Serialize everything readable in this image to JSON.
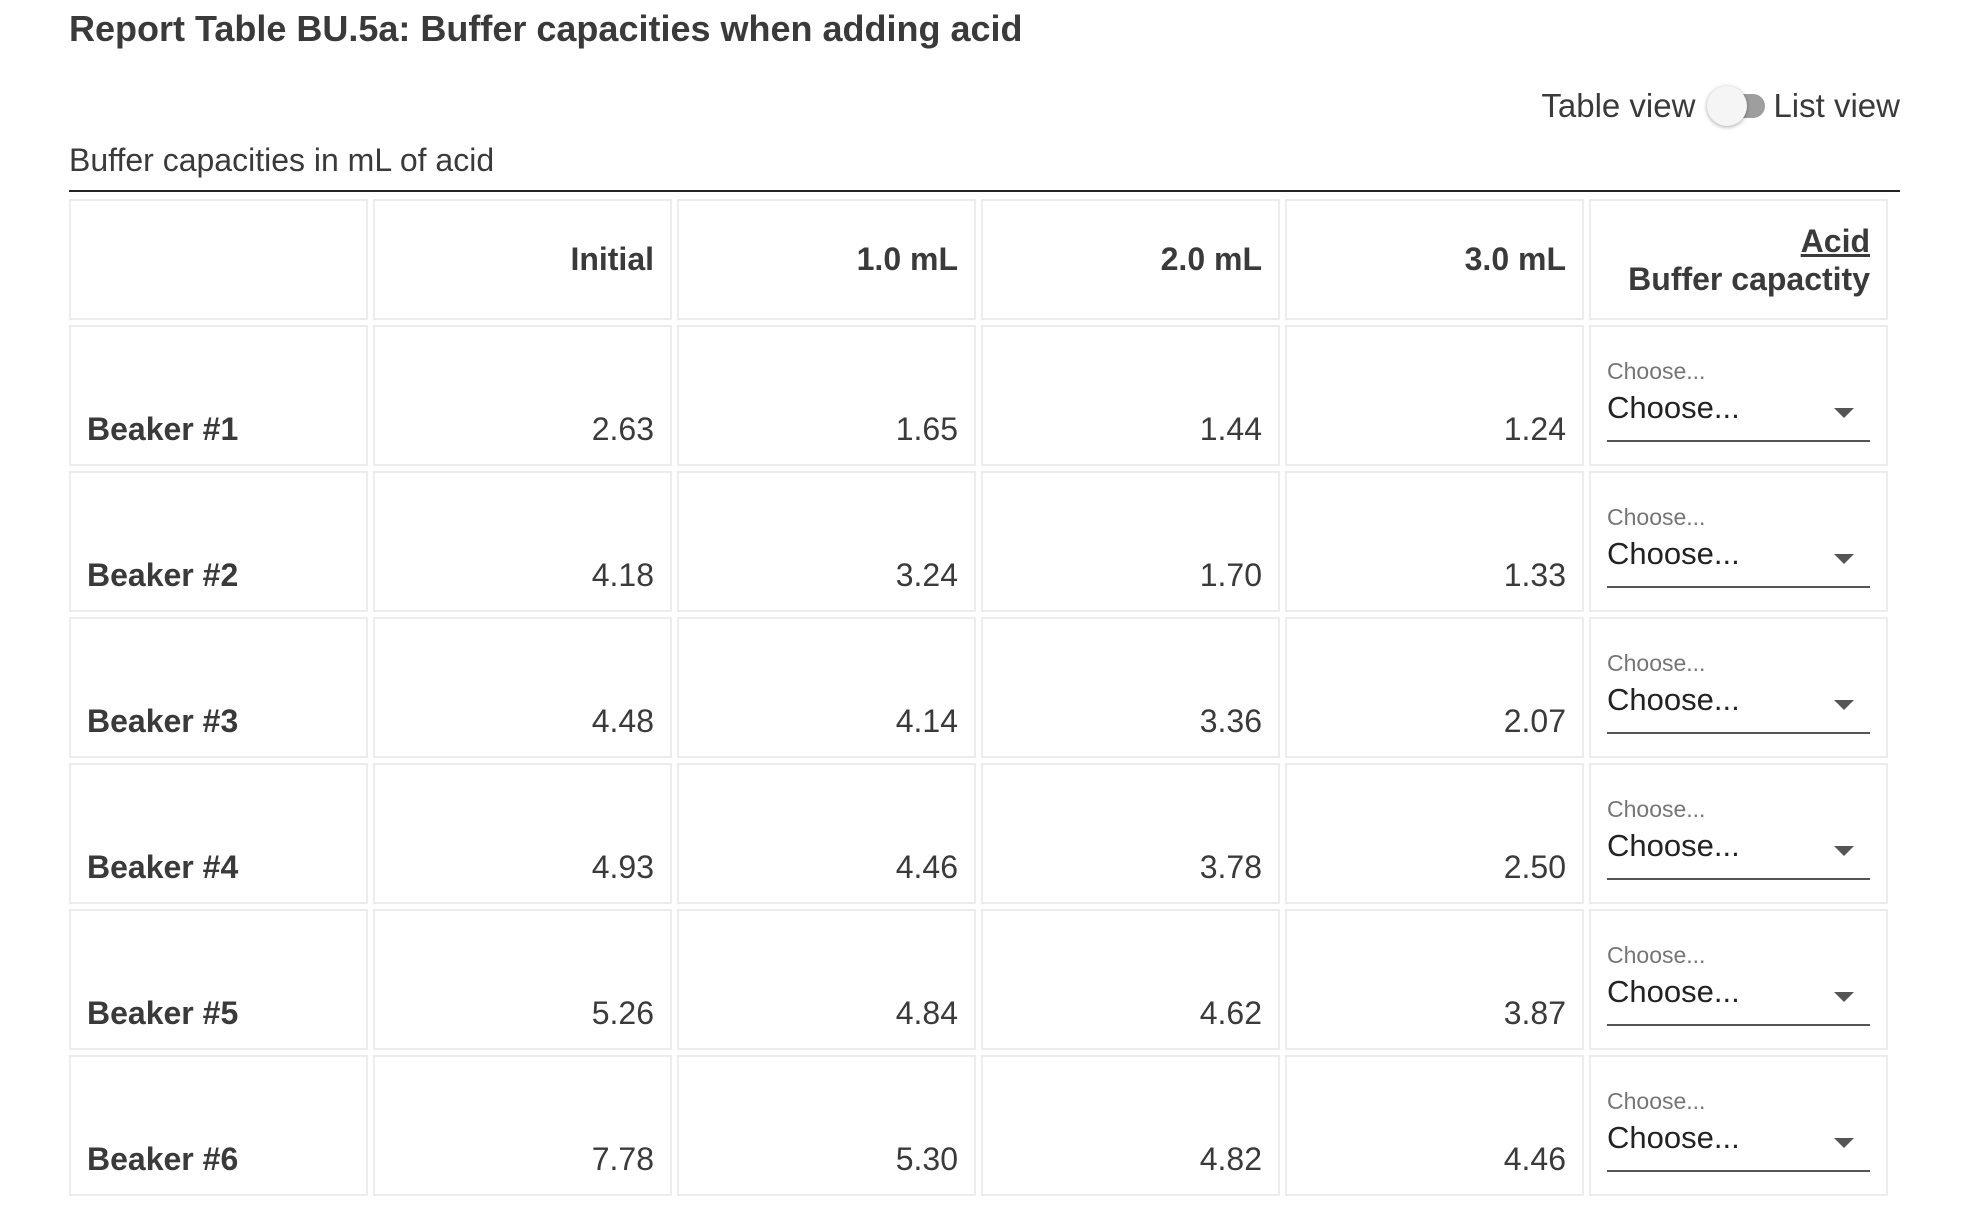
{
  "title": "Report Table BU.5a: Buffer capacities when adding acid",
  "view_toggle": {
    "left_label": "Table view",
    "right_label": "List view"
  },
  "caption": "Buffer capacities in mL of acid",
  "table": {
    "headers": {
      "corner": "",
      "initial": "Initial",
      "ml1": "1.0 mL",
      "ml2": "2.0 mL",
      "ml3": "3.0 mL",
      "acid_link": "Acid",
      "capacity": "Buffer capactity"
    },
    "rows": [
      {
        "label": "Beaker #1",
        "initial": "2.63",
        "ml1": "1.65",
        "ml2": "1.44",
        "ml3": "1.24",
        "select_label": "Choose...",
        "select_value": "Choose..."
      },
      {
        "label": "Beaker #2",
        "initial": "4.18",
        "ml1": "3.24",
        "ml2": "1.70",
        "ml3": "1.33",
        "select_label": "Choose...",
        "select_value": "Choose..."
      },
      {
        "label": "Beaker #3",
        "initial": "4.48",
        "ml1": "4.14",
        "ml2": "3.36",
        "ml3": "2.07",
        "select_label": "Choose...",
        "select_value": "Choose..."
      },
      {
        "label": "Beaker #4",
        "initial": "4.93",
        "ml1": "4.46",
        "ml2": "3.78",
        "ml3": "2.50",
        "select_label": "Choose...",
        "select_value": "Choose..."
      },
      {
        "label": "Beaker #5",
        "initial": "5.26",
        "ml1": "4.84",
        "ml2": "4.62",
        "ml3": "3.87",
        "select_label": "Choose...",
        "select_value": "Choose..."
      },
      {
        "label": "Beaker #6",
        "initial": "7.78",
        "ml1": "5.30",
        "ml2": "4.82",
        "ml3": "4.46",
        "select_label": "Choose...",
        "select_value": "Choose..."
      }
    ]
  }
}
